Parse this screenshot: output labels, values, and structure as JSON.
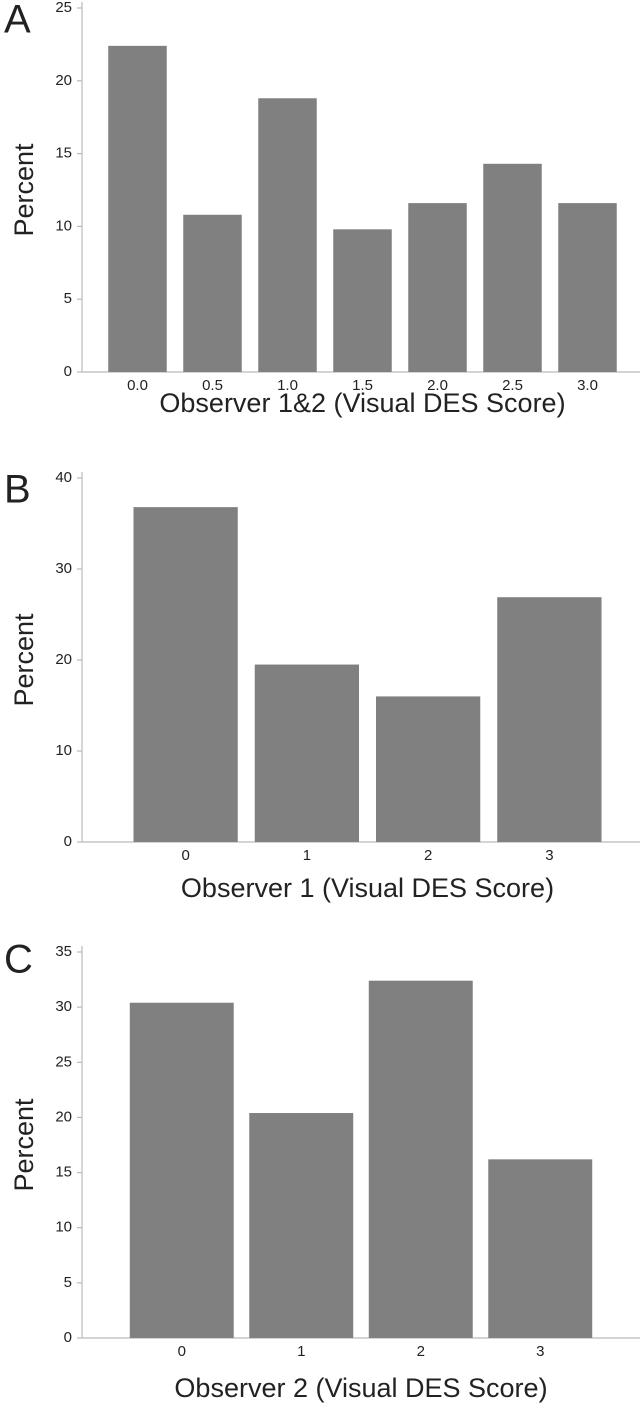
{
  "chart_data": [
    {
      "type": "bar",
      "panel": "A",
      "y_label": "Percent",
      "x_label": "Observer 1&2 (Visual DES Score)",
      "categories": [
        "0.0",
        "0.5",
        "1.0",
        "1.5",
        "2.0",
        "2.5",
        "3.0"
      ],
      "values": [
        22.4,
        10.8,
        18.8,
        9.8,
        11.6,
        14.3,
        11.6
      ],
      "color": "#808080",
      "ylim": [
        0,
        25
      ],
      "yticks": [
        0,
        5,
        10,
        15,
        20,
        25
      ]
    },
    {
      "type": "bar",
      "panel": "B",
      "y_label": "Percent",
      "x_label": "Observer 1 (Visual DES Score)",
      "categories": [
        "0",
        "1",
        "2",
        "3"
      ],
      "values": [
        36.8,
        19.5,
        16.0,
        26.9
      ],
      "color": "#808080",
      "ylim": [
        0,
        40
      ],
      "yticks": [
        0,
        10,
        20,
        30,
        40
      ]
    },
    {
      "type": "bar",
      "panel": "C",
      "y_label": "Percent",
      "x_label": "Observer 2 (Visual DES Score)",
      "categories": [
        "0",
        "1",
        "2",
        "3"
      ],
      "values": [
        30.4,
        20.4,
        32.4,
        16.2
      ],
      "color": "#808080",
      "ylim": [
        0,
        35
      ],
      "yticks": [
        0,
        5,
        10,
        15,
        20,
        25,
        30,
        35
      ]
    }
  ]
}
